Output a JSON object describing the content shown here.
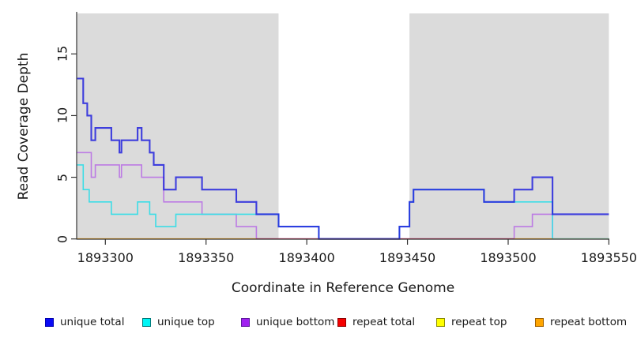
{
  "chart_data": {
    "type": "line",
    "subtype": "step",
    "title": "",
    "xlabel": "Coordinate in Reference Genome",
    "ylabel": "Read Coverage Depth",
    "xlim": [
      1893286,
      1893550
    ],
    "ylim": [
      0,
      18.3
    ],
    "x_ticks": [
      "1893300",
      "1893350",
      "1893400",
      "1893450",
      "1893500",
      "1893550"
    ],
    "x_tick_values": [
      1893300,
      1893350,
      1893400,
      1893450,
      1893500,
      1893550
    ],
    "y_ticks": [
      "0",
      "5",
      "10",
      "15"
    ],
    "y_tick_values": [
      0,
      5,
      10,
      15
    ],
    "grid": false,
    "legend_position": "bottom",
    "background_color": "#ffffff",
    "shade_color": "#DBDBDB",
    "shaded_regions": [
      {
        "from": 1893286,
        "to": 1893386
      },
      {
        "from": 1893451,
        "to": 1893550
      }
    ],
    "series": [
      {
        "name": "repeat total",
        "color": "#CC3355",
        "width": 1.5,
        "opacity": 1,
        "steps": [
          [
            1893286,
            0
          ],
          [
            1893550,
            0
          ]
        ]
      },
      {
        "name": "repeat top",
        "color": "#EEEE22",
        "width": 1.5,
        "opacity": 1,
        "steps": [
          [
            1893286,
            0
          ],
          [
            1893550,
            0
          ]
        ]
      },
      {
        "name": "repeat bottom",
        "color": "#FFA500",
        "width": 1.5,
        "opacity": 1,
        "steps": [
          [
            1893286,
            0
          ],
          [
            1893550,
            0
          ]
        ]
      },
      {
        "name": "unique bottom",
        "color": "#BC7BE4",
        "width": 1.6,
        "opacity": 1,
        "steps": [
          [
            1893286,
            7
          ],
          [
            1893293,
            5
          ],
          [
            1893295,
            6
          ],
          [
            1893307,
            5
          ],
          [
            1893308,
            6
          ],
          [
            1893318,
            5
          ],
          [
            1893329,
            3
          ],
          [
            1893348,
            2
          ],
          [
            1893365,
            1
          ],
          [
            1893375,
            0
          ],
          [
            1893503,
            1
          ],
          [
            1893512,
            2
          ],
          [
            1893522,
            0
          ],
          [
            1893550,
            0
          ]
        ]
      },
      {
        "name": "unique top",
        "color": "#3CDDE6",
        "width": 1.6,
        "opacity": 1,
        "steps": [
          [
            1893286,
            6
          ],
          [
            1893289,
            4
          ],
          [
            1893292,
            3
          ],
          [
            1893303,
            2
          ],
          [
            1893316,
            3
          ],
          [
            1893322,
            2
          ],
          [
            1893325,
            1
          ],
          [
            1893335,
            2
          ],
          [
            1893386,
            1
          ],
          [
            1893406,
            0
          ],
          [
            1893446,
            1
          ],
          [
            1893451,
            3
          ],
          [
            1893453,
            4
          ],
          [
            1893488,
            3
          ],
          [
            1893522,
            0
          ],
          [
            1893550,
            0
          ]
        ]
      },
      {
        "name": "unique total",
        "color": "#2222DD",
        "width": 2.1,
        "opacity": 0.85,
        "steps": [
          [
            1893286,
            13
          ],
          [
            1893289,
            11
          ],
          [
            1893291,
            10
          ],
          [
            1893293,
            8
          ],
          [
            1893295,
            9
          ],
          [
            1893303,
            8
          ],
          [
            1893307,
            7
          ],
          [
            1893308,
            8
          ],
          [
            1893316,
            9
          ],
          [
            1893318,
            8
          ],
          [
            1893322,
            7
          ],
          [
            1893324,
            6
          ],
          [
            1893329,
            4
          ],
          [
            1893335,
            5
          ],
          [
            1893348,
            4
          ],
          [
            1893365,
            3
          ],
          [
            1893375,
            2
          ],
          [
            1893386,
            1
          ],
          [
            1893406,
            0
          ],
          [
            1893446,
            1
          ],
          [
            1893451,
            3
          ],
          [
            1893453,
            4
          ],
          [
            1893488,
            3
          ],
          [
            1893503,
            4
          ],
          [
            1893512,
            5
          ],
          [
            1893522,
            2
          ],
          [
            1893550,
            2
          ]
        ]
      }
    ],
    "baseline_visible_segments": [
      {
        "from": 1893286,
        "to": 1893375,
        "color": "#FFA500"
      },
      {
        "from": 1893375,
        "to": 1893503,
        "color": "#CC3355"
      },
      {
        "from": 1893503,
        "to": 1893522,
        "color": "#FFA500"
      },
      {
        "from": 1893522,
        "to": 1893550,
        "color": "#8CCD8C"
      }
    ],
    "legend": [
      {
        "label": "unique total",
        "fill": "#0A0AF5",
        "border": "#0000B0"
      },
      {
        "label": "unique top",
        "fill": "#00F5F5",
        "border": "#007A7A"
      },
      {
        "label": "unique bottom",
        "fill": "#A020F0",
        "border": "#5E18A0"
      },
      {
        "label": "repeat total",
        "fill": "#F50000",
        "border": "#900000"
      },
      {
        "label": "repeat top",
        "fill": "#FFFF00",
        "border": "#8B8B00"
      },
      {
        "label": "repeat bottom",
        "fill": "#FFA500",
        "border": "#A06000"
      }
    ]
  },
  "labels": {
    "y_axis": "Read Coverage Depth",
    "x_axis": "Coordinate in Reference Genome"
  }
}
